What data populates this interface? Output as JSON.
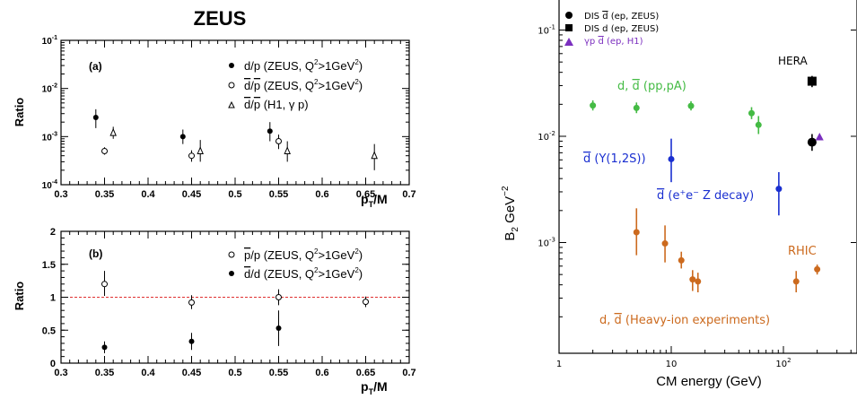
{
  "zeus_title": "ZEUS",
  "chart_data": [
    {
      "type": "scatter",
      "panel_label": "(a)",
      "xlabel": "pT/M",
      "ylabel": "Ratio",
      "xlim": [
        0.3,
        0.7
      ],
      "ylim": [
        0.0001,
        0.1
      ],
      "yscale": "log",
      "x_ticks": [
        "0.3",
        "0.35",
        "0.4",
        "0.45",
        "0.5",
        "0.55",
        "0.6",
        "0.65",
        "0.7"
      ],
      "y_ticks": [
        "10-4",
        "10-3",
        "10-2",
        "10-1"
      ],
      "legend_position": "top-right",
      "series": [
        {
          "name": "d/p (ZEUS, Q2>1GeV2)",
          "marker": "filled-circle",
          "points": [
            {
              "x": 0.34,
              "y": 0.0025,
              "lo": 0.0015,
              "hi": 0.0037
            },
            {
              "x": 0.44,
              "y": 0.001,
              "lo": 0.0007,
              "hi": 0.0014
            },
            {
              "x": 0.54,
              "y": 0.0013,
              "lo": 0.0008,
              "hi": 0.002
            }
          ]
        },
        {
          "name": "d̄/p̄ (ZEUS, Q2>1GeV2)",
          "marker": "open-circle",
          "points": [
            {
              "x": 0.35,
              "y": 0.0005,
              "lo": 0.00042,
              "hi": 0.0006
            },
            {
              "x": 0.45,
              "y": 0.0004,
              "lo": 0.0003,
              "hi": 0.00052
            },
            {
              "x": 0.55,
              "y": 0.0008,
              "lo": 0.00055,
              "hi": 0.0011
            }
          ]
        },
        {
          "name": "d̄/p̄ (H1, γ p)",
          "marker": "open-triangle",
          "points": [
            {
              "x": 0.36,
              "y": 0.0012,
              "lo": 0.0009,
              "hi": 0.0016
            },
            {
              "x": 0.46,
              "y": 0.0005,
              "lo": 0.0003,
              "hi": 0.00085
            },
            {
              "x": 0.56,
              "y": 0.0005,
              "lo": 0.0003,
              "hi": 0.0008
            },
            {
              "x": 0.66,
              "y": 0.0004,
              "lo": 0.0002,
              "hi": 0.0007
            }
          ]
        }
      ]
    },
    {
      "type": "scatter",
      "panel_label": "(b)",
      "xlabel": "pT/M",
      "ylabel": "Ratio",
      "xlim": [
        0.3,
        0.7
      ],
      "ylim": [
        0,
        2
      ],
      "x_ticks": [
        "0.3",
        "0.35",
        "0.4",
        "0.45",
        "0.5",
        "0.55",
        "0.6",
        "0.65",
        "0.7"
      ],
      "y_ticks": [
        "0",
        "0.5",
        "1",
        "1.5",
        "2"
      ],
      "reference_line": 1,
      "legend_position": "top-right",
      "series": [
        {
          "name": "p̄/p (ZEUS, Q2>1GeV2)",
          "marker": "open-circle",
          "points": [
            {
              "x": 0.35,
              "y": 1.2,
              "lo": 1.02,
              "hi": 1.4
            },
            {
              "x": 0.45,
              "y": 0.92,
              "lo": 0.82,
              "hi": 1.03
            },
            {
              "x": 0.55,
              "y": 1.0,
              "lo": 0.88,
              "hi": 1.12
            },
            {
              "x": 0.65,
              "y": 0.93,
              "lo": 0.85,
              "hi": 1.01
            }
          ]
        },
        {
          "name": "d̄/d (ZEUS, Q2>1GeV2)",
          "marker": "filled-circle",
          "points": [
            {
              "x": 0.35,
              "y": 0.24,
              "lo": 0.15,
              "hi": 0.33
            },
            {
              "x": 0.45,
              "y": 0.33,
              "lo": 0.2,
              "hi": 0.46
            },
            {
              "x": 0.55,
              "y": 0.53,
              "lo": 0.26,
              "hi": 0.8
            }
          ]
        }
      ]
    },
    {
      "type": "scatter",
      "xlabel": "CM energy (GeV)",
      "ylabel": "B2 GeV-2",
      "xscale": "log",
      "yscale": "log",
      "xlim": [
        1,
        400
      ],
      "ylim": [
        0.0001,
        0.2
      ],
      "x_ticks": [
        "1",
        "10",
        "10^2"
      ],
      "y_ticks": [
        "10^-3",
        "10^-2",
        "10^-1"
      ],
      "legend_position": "top-left",
      "legend": [
        {
          "label": "DIS d̄  (ep, ZEUS)",
          "marker": "circle",
          "color": "#000000"
        },
        {
          "label": "DIS d  (ep, ZEUS)",
          "marker": "square",
          "color": "#000000"
        },
        {
          "label": "γp  d̄   (ep, H1)",
          "marker": "triangle",
          "color": "#7b2fbf"
        }
      ],
      "annotations": [
        {
          "text": "HERA",
          "color": "#000000"
        },
        {
          "text": "d, d̄  (pp,pA)",
          "color": "#44bb44"
        },
        {
          "text": "d̄  (Υ(1,2S))",
          "color": "#1a2fd0"
        },
        {
          "text": "d̄  (e⁺e⁻ Z decay)",
          "color": "#1a2fd0"
        },
        {
          "text": "RHIC",
          "color": "#cc6a1e"
        },
        {
          "text": "d, d̄  (Heavy-ion experiments)",
          "color": "#cc6a1e"
        }
      ],
      "series": [
        {
          "group": "DIS d̄ (ep, ZEUS)",
          "color": "#000000",
          "marker": "circle",
          "points": [
            {
              "x": 180,
              "y": 0.0088,
              "lo": 0.0073,
              "hi": 0.0105
            }
          ]
        },
        {
          "group": "DIS d (ep, ZEUS)",
          "color": "#000000",
          "marker": "square",
          "points": [
            {
              "x": 180,
              "y": 0.033,
              "lo": 0.029,
              "hi": 0.037
            }
          ]
        },
        {
          "group": "γp d̄ (ep, H1)",
          "color": "#7b2fbf",
          "marker": "triangle",
          "points": [
            {
              "x": 210,
              "y": 0.0098,
              "lo": 0.0098,
              "hi": 0.0098
            }
          ]
        },
        {
          "group": "d, d̄ (pp,pA)",
          "color": "#44bb44",
          "marker": "circle",
          "points": [
            {
              "x": 2,
              "y": 0.0195,
              "lo": 0.0175,
              "hi": 0.0218
            },
            {
              "x": 4.9,
              "y": 0.0185,
              "lo": 0.0165,
              "hi": 0.0208
            },
            {
              "x": 15,
              "y": 0.0193,
              "lo": 0.0175,
              "hi": 0.0214
            },
            {
              "x": 52,
              "y": 0.0165,
              "lo": 0.0145,
              "hi": 0.0188
            },
            {
              "x": 60,
              "y": 0.0128,
              "lo": 0.0105,
              "hi": 0.0155
            }
          ]
        },
        {
          "group": "d̄ (Υ(1,2S))",
          "color": "#1a2fd0",
          "marker": "circle",
          "points": [
            {
              "x": 10,
              "y": 0.0061,
              "lo": 0.0037,
              "hi": 0.0095
            }
          ]
        },
        {
          "group": "d̄ (e⁺e⁻ Z decay)",
          "color": "#1a2fd0",
          "marker": "circle",
          "points": [
            {
              "x": 91,
              "y": 0.0032,
              "lo": 0.0018,
              "hi": 0.0046
            }
          ]
        },
        {
          "group": "d, d̄ (Heavy-ion experiments)",
          "color": "#cc6a1e",
          "marker": "circle",
          "points": [
            {
              "x": 4.9,
              "y": 0.00125,
              "lo": 0.00076,
              "hi": 0.0021
            },
            {
              "x": 8.8,
              "y": 0.00098,
              "lo": 0.00065,
              "hi": 0.00145
            },
            {
              "x": 12.3,
              "y": 0.00068,
              "lo": 0.00057,
              "hi": 0.00082
            },
            {
              "x": 15.5,
              "y": 0.00045,
              "lo": 0.00035,
              "hi": 0.00055
            },
            {
              "x": 17.3,
              "y": 0.00043,
              "lo": 0.00034,
              "hi": 0.00052
            },
            {
              "x": 130,
              "y": 0.00043,
              "lo": 0.00034,
              "hi": 0.00054
            },
            {
              "x": 200,
              "y": 0.00056,
              "lo": 0.0005,
              "hi": 0.00062
            }
          ]
        }
      ]
    }
  ]
}
